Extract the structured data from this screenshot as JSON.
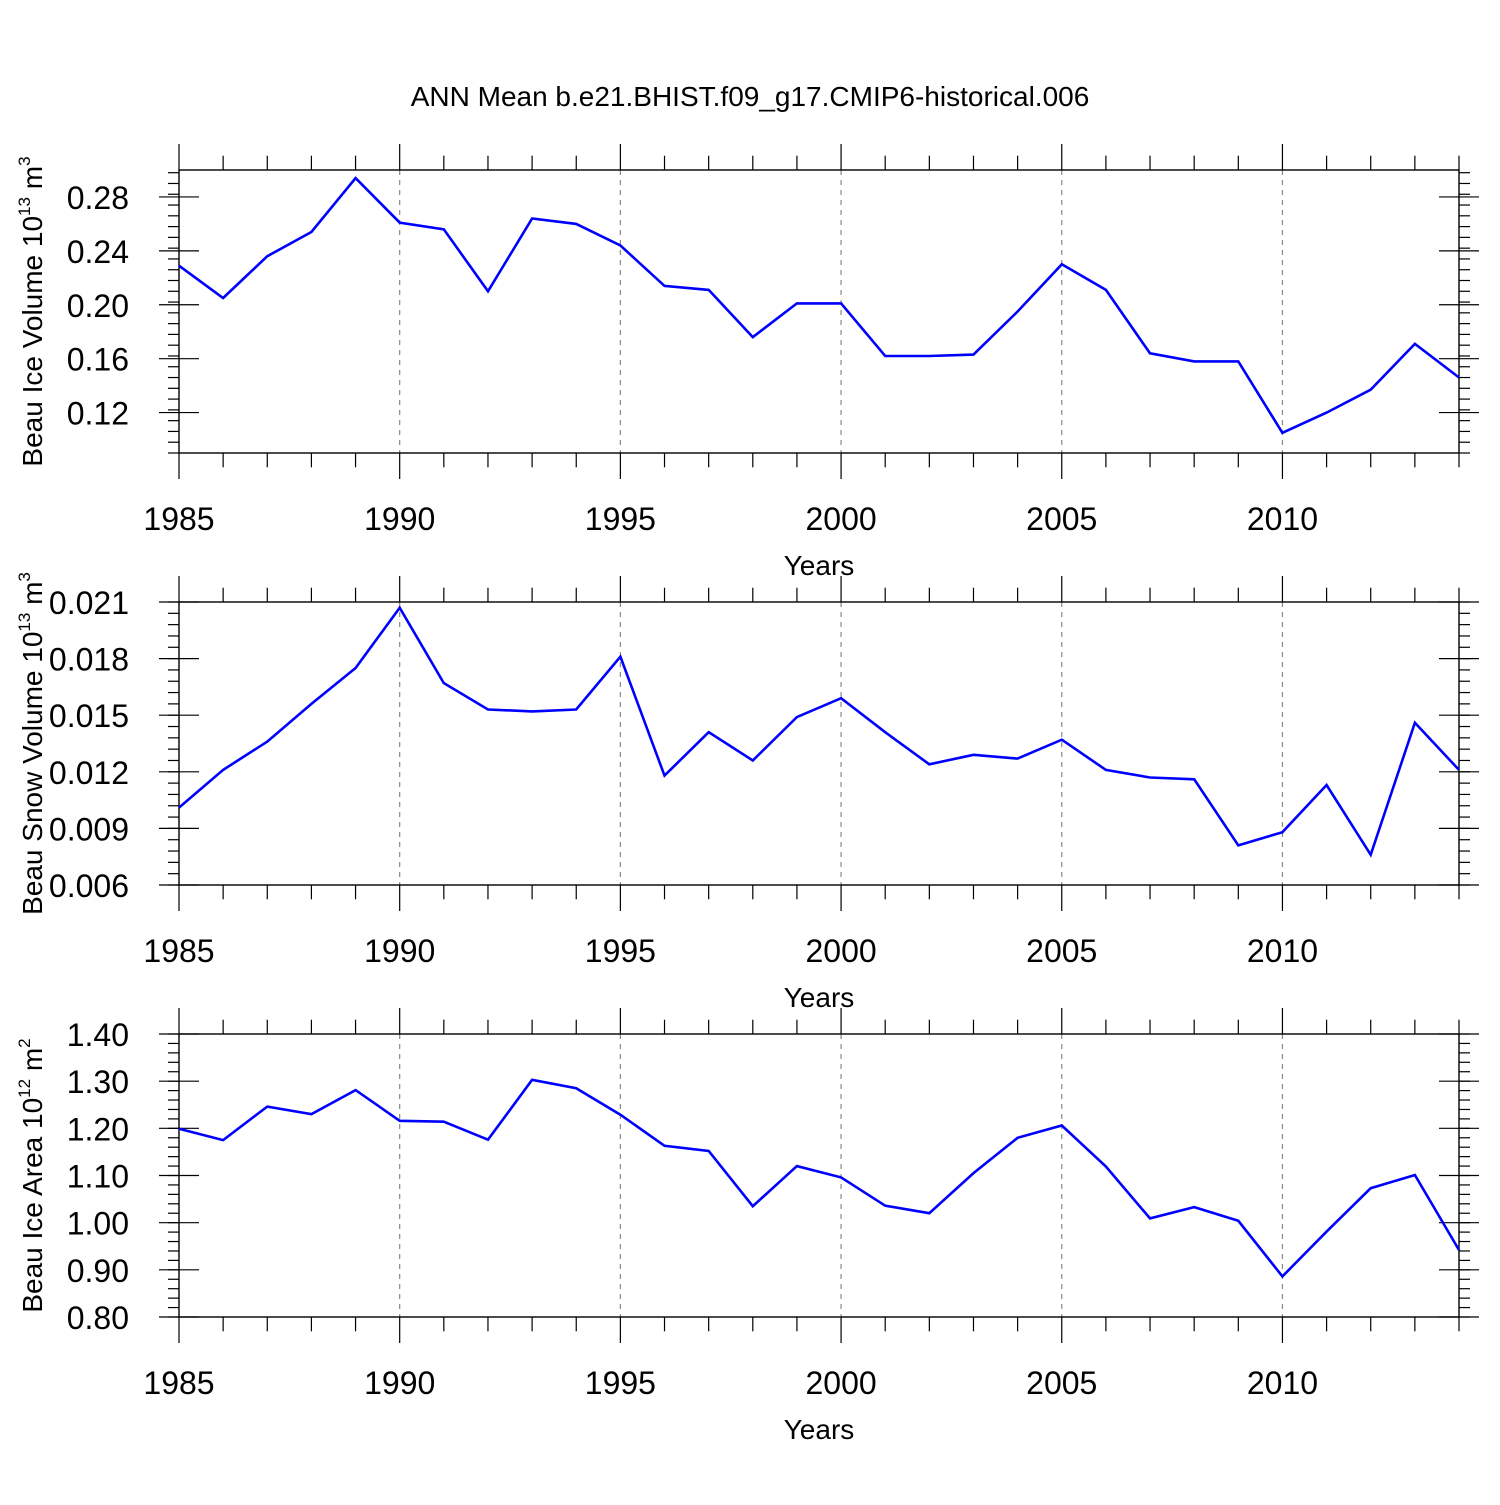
{
  "title": "ANN Mean b.e21.BHIST.f09_g17.CMIP6-historical.006",
  "colors": {
    "series": "#0000ff",
    "axis": "#000000",
    "grid": "#888888"
  },
  "chart_data": [
    {
      "type": "line",
      "name": "ice-volume",
      "ylabel_main": "Beau Ice Volume 10",
      "ylabel_exp": "13",
      "ylabel_unit": " m",
      "ylabel_unit_exp": "3",
      "xlabel": "Years",
      "xlim": [
        1985,
        2014
      ],
      "ylim": [
        0.09,
        0.3
      ],
      "yticks": [
        0.12,
        0.16,
        0.2,
        0.24,
        0.28
      ],
      "ytick_labels": [
        "0.12",
        "0.16",
        "0.20",
        "0.24",
        "0.28"
      ],
      "yminor_step": 0.008,
      "xticks": [
        1985,
        1990,
        1995,
        2000,
        2005,
        2010
      ],
      "xtick_labels": [
        "1985",
        "1990",
        "1995",
        "2000",
        "2005",
        "2010"
      ],
      "grid": "vertical dashed at major x ticks",
      "x": [
        1985,
        1986,
        1987,
        1988,
        1989,
        1990,
        1991,
        1992,
        1993,
        1994,
        1995,
        1996,
        1997,
        1998,
        1999,
        2000,
        2001,
        2002,
        2003,
        2004,
        2005,
        2006,
        2007,
        2008,
        2009,
        2010,
        2011,
        2012,
        2013,
        2014
      ],
      "values": [
        0.229,
        0.205,
        0.236,
        0.254,
        0.294,
        0.261,
        0.256,
        0.21,
        0.264,
        0.26,
        0.244,
        0.214,
        0.211,
        0.176,
        0.201,
        0.201,
        0.162,
        0.162,
        0.163,
        0.195,
        0.23,
        0.211,
        0.164,
        0.158,
        0.158,
        0.105,
        0.12,
        0.137,
        0.171,
        0.146
      ]
    },
    {
      "type": "line",
      "name": "snow-volume",
      "ylabel_main": "Beau Snow Volume 10",
      "ylabel_exp": "13",
      "ylabel_unit": " m",
      "ylabel_unit_exp": "3",
      "xlabel": "Years",
      "xlim": [
        1985,
        2014
      ],
      "ylim": [
        0.006,
        0.021
      ],
      "yticks": [
        0.006,
        0.009,
        0.012,
        0.015,
        0.018,
        0.021
      ],
      "ytick_labels": [
        "0.006",
        "0.009",
        "0.012",
        "0.015",
        "0.018",
        "0.021"
      ],
      "yminor_step": 0.0006,
      "xticks": [
        1985,
        1990,
        1995,
        2000,
        2005,
        2010
      ],
      "xtick_labels": [
        "1985",
        "1990",
        "1995",
        "2000",
        "2005",
        "2010"
      ],
      "grid": "vertical dashed at major x ticks",
      "x": [
        1985,
        1986,
        1987,
        1988,
        1989,
        1990,
        1991,
        1992,
        1993,
        1994,
        1995,
        1996,
        1997,
        1998,
        1999,
        2000,
        2001,
        2002,
        2003,
        2004,
        2005,
        2006,
        2007,
        2008,
        2009,
        2010,
        2011,
        2012,
        2013,
        2014
      ],
      "values": [
        0.0101,
        0.0121,
        0.0136,
        0.0156,
        0.0175,
        0.0207,
        0.0167,
        0.0153,
        0.0152,
        0.0153,
        0.0181,
        0.0118,
        0.0141,
        0.0126,
        0.0149,
        0.0159,
        0.0141,
        0.0124,
        0.0129,
        0.0127,
        0.0137,
        0.0121,
        0.0117,
        0.0116,
        0.0081,
        0.0088,
        0.0113,
        0.0076,
        0.0146,
        0.0121
      ]
    },
    {
      "type": "line",
      "name": "ice-area",
      "ylabel_main": "Beau Ice Area 10",
      "ylabel_exp": "12",
      "ylabel_unit": " m",
      "ylabel_unit_exp": "2",
      "xlabel": "Years",
      "xlim": [
        1985,
        2014
      ],
      "ylim": [
        0.8,
        1.4
      ],
      "yticks": [
        0.8,
        0.9,
        1.0,
        1.1,
        1.2,
        1.3,
        1.4
      ],
      "ytick_labels": [
        "0.80",
        "0.90",
        "1.00",
        "1.10",
        "1.20",
        "1.30",
        "1.40"
      ],
      "yminor_step": 0.02,
      "xticks": [
        1985,
        1990,
        1995,
        2000,
        2005,
        2010
      ],
      "xtick_labels": [
        "1985",
        "1990",
        "1995",
        "2000",
        "2005",
        "2010"
      ],
      "grid": "vertical dashed at major x ticks",
      "x": [
        1985,
        1986,
        1987,
        1988,
        1989,
        1990,
        1991,
        1992,
        1993,
        1994,
        1995,
        1996,
        1997,
        1998,
        1999,
        2000,
        2001,
        2002,
        2003,
        2004,
        2005,
        2006,
        2007,
        2008,
        2009,
        2010,
        2011,
        2012,
        2013,
        2014
      ],
      "values": [
        1.199,
        1.175,
        1.246,
        1.23,
        1.281,
        1.216,
        1.214,
        1.176,
        1.303,
        1.285,
        1.229,
        1.163,
        1.152,
        1.035,
        1.12,
        1.096,
        1.036,
        1.02,
        1.105,
        1.18,
        1.206,
        1.119,
        1.009,
        1.033,
        1.004,
        0.886,
        0.981,
        1.073,
        1.101,
        0.942
      ]
    }
  ]
}
